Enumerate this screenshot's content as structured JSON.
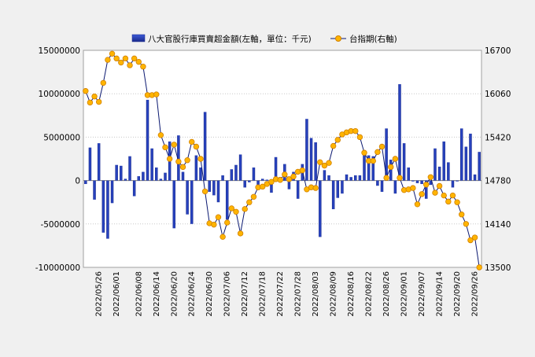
{
  "chart_data": {
    "type": "bar+line",
    "legend": {
      "placement": "top-center",
      "bar_label": "八大官股行庫買賣超金額(左軸，單位：千元)",
      "line_label": "台指期(右軸)"
    },
    "left_axis": {
      "min": -10000000,
      "max": 15000000,
      "ticks": [
        "15000000",
        "10000000",
        "5000000",
        "0",
        "-5000000",
        "-10000000"
      ]
    },
    "right_axis": {
      "min": 13500,
      "max": 16700,
      "ticks": [
        "16700",
        "16060",
        "15420",
        "14780",
        "14140",
        "13500"
      ]
    },
    "x_tick_labels": [
      {
        "index": 3,
        "label": "2022/05/26"
      },
      {
        "index": 7,
        "label": "2022/06/01"
      },
      {
        "index": 12,
        "label": "2022/06/08"
      },
      {
        "index": 16,
        "label": "2022/06/14"
      },
      {
        "index": 20,
        "label": "2022/06/20"
      },
      {
        "index": 24,
        "label": "2022/06/24"
      },
      {
        "index": 28,
        "label": "2022/06/30"
      },
      {
        "index": 32,
        "label": "2022/07/06"
      },
      {
        "index": 36,
        "label": "2022/07/12"
      },
      {
        "index": 40,
        "label": "2022/07/18"
      },
      {
        "index": 44,
        "label": "2022/07/22"
      },
      {
        "index": 48,
        "label": "2022/07/28"
      },
      {
        "index": 52,
        "label": "2022/08/03"
      },
      {
        "index": 56,
        "label": "2022/08/09"
      },
      {
        "index": 60,
        "label": "2022/08/16"
      },
      {
        "index": 64,
        "label": "2022/08/22"
      },
      {
        "index": 68,
        "label": "2022/08/26"
      },
      {
        "index": 72,
        "label": "2022/09/01"
      },
      {
        "index": 76,
        "label": "2022/09/07"
      },
      {
        "index": 80,
        "label": "2022/09/14"
      },
      {
        "index": 84,
        "label": "2022/09/20"
      },
      {
        "index": 88,
        "label": "2022/09/26"
      }
    ],
    "bars": [
      -400000,
      3800000,
      -2200000,
      4300000,
      -6000000,
      -6700000,
      -2600000,
      1800000,
      1700000,
      200000,
      2800000,
      -1800000,
      500000,
      1000000,
      9300000,
      3700000,
      1500000,
      200000,
      900000,
      4500000,
      -5500000,
      5200000,
      1000000,
      -3900000,
      -5000000,
      2900000,
      1500000,
      7900000,
      -1300000,
      -1700000,
      -2500000,
      600000,
      -4500000,
      1300000,
      1800000,
      3000000,
      -800000,
      -200000,
      1500000,
      -700000,
      200000,
      100000,
      -1400000,
      2700000,
      400000,
      1900000,
      -1000000,
      1000000,
      -2100000,
      1900000,
      7100000,
      4900000,
      4400000,
      -6500000,
      1200000,
      600000,
      -3300000,
      -2000000,
      -1500000,
      700000,
      400000,
      600000,
      600000,
      3100000,
      2900000,
      2800000,
      -600000,
      -1300000,
      6000000,
      2400000,
      -1500000,
      11100000,
      4300000,
      1500000,
      -100000,
      -300000,
      -400000,
      -2100000,
      -500000,
      3700000,
      1600000,
      4500000,
      2100000,
      -800000,
      -100000,
      6000000,
      3900000,
      5400000,
      700000,
      3300000
    ],
    "line": [
      16100,
      15930,
      16020,
      15940,
      16220,
      16560,
      16650,
      16580,
      16520,
      16580,
      16480,
      16580,
      16530,
      16460,
      16040,
      16040,
      16050,
      15450,
      15270,
      15100,
      15310,
      15060,
      14980,
      15080,
      15350,
      15280,
      15100,
      14620,
      14150,
      14130,
      14240,
      13950,
      14160,
      14370,
      14320,
      14000,
      14360,
      14460,
      14540,
      14680,
      14690,
      14730,
      14760,
      14800,
      14790,
      14870,
      14800,
      14840,
      14910,
      14930,
      14650,
      14680,
      14670,
      15050,
      15000,
      15040,
      15290,
      15380,
      15460,
      15490,
      15510,
      15510,
      15420,
      15190,
      15070,
      15070,
      15200,
      15280,
      14820,
      14980,
      15100,
      14820,
      14640,
      14650,
      14670,
      14430,
      14580,
      14720,
      14830,
      14600,
      14700,
      14560,
      14470,
      14560,
      14460,
      14280,
      14140,
      13900,
      13940,
      13500
    ]
  }
}
